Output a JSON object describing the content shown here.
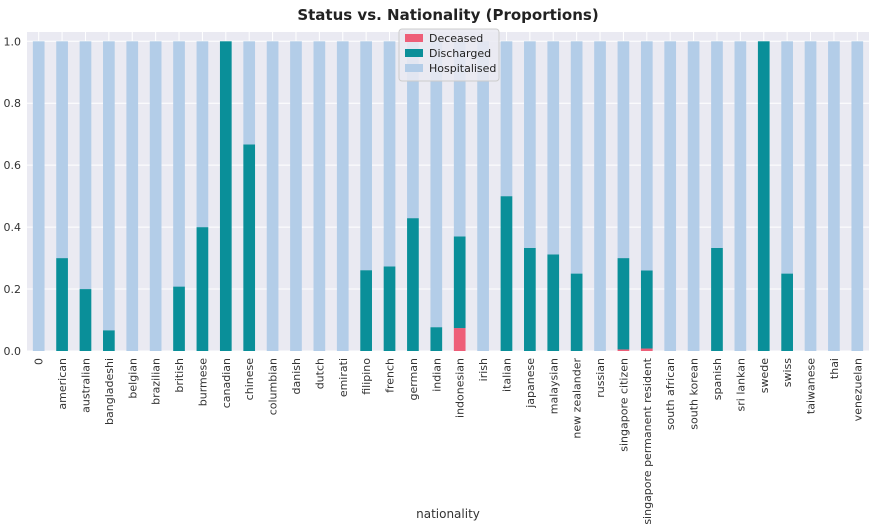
{
  "chart_data": {
    "type": "bar",
    "stacked": true,
    "title": "Status vs. Nationality (Proportions)",
    "xlabel": "nationality",
    "ylabel": "",
    "ylim": [
      0,
      1.03
    ],
    "yticks": [
      0.0,
      0.2,
      0.4,
      0.6,
      0.8,
      1.0
    ],
    "ytick_labels": [
      "0.0",
      "0.2",
      "0.4",
      "0.6",
      "0.8",
      "1.0"
    ],
    "grid": true,
    "legend_position": "top-center",
    "categories": [
      "0",
      "american",
      "australian",
      "bangladeshi",
      "belgian",
      "brazilian",
      "british",
      "burmese",
      "canadian",
      "chinese",
      "columbian",
      "danish",
      "dutch",
      "emirati",
      "filipino",
      "french",
      "german",
      "indian",
      "indonesian",
      "irish",
      "italian",
      "japanese",
      "malaysian",
      "new zealander",
      "russian",
      "singapore citizen",
      "singapore permanent resident",
      "south african",
      "south korean",
      "spanish",
      "sri lankan",
      "swede",
      "swiss",
      "taiwanese",
      "thai",
      "venezuelan"
    ],
    "series": [
      {
        "name": "Deceased",
        "color": "#ee5e78",
        "values": [
          0,
          0,
          0,
          0,
          0,
          0,
          0,
          0,
          0,
          0,
          0,
          0,
          0,
          0,
          0,
          0,
          0,
          0,
          0.074,
          0,
          0,
          0,
          0,
          0,
          0,
          0.005,
          0.008,
          0,
          0,
          0,
          0,
          0,
          0,
          0,
          0,
          0
        ]
      },
      {
        "name": "Discharged",
        "color": "#0a8f99",
        "values": [
          0,
          0.3,
          0.2,
          0.067,
          0,
          0,
          0.208,
          0.4,
          1.0,
          0.667,
          0,
          0,
          0,
          0,
          0.261,
          0.273,
          0.429,
          0.077,
          0.296,
          0,
          0.5,
          0.333,
          0.312,
          0.25,
          0,
          0.295,
          0.252,
          0,
          0,
          0.333,
          0,
          1.0,
          0.25,
          0,
          0,
          0
        ]
      },
      {
        "name": "Hospitalised",
        "color": "#b3cde8",
        "values": [
          1.0,
          0.7,
          0.8,
          0.933,
          1.0,
          1.0,
          0.792,
          0.6,
          0,
          0.333,
          1.0,
          1.0,
          1.0,
          1.0,
          0.739,
          0.727,
          0.571,
          0.923,
          0.63,
          1.0,
          0.5,
          0.667,
          0.688,
          0.75,
          1.0,
          0.7,
          0.74,
          1.0,
          1.0,
          0.667,
          1.0,
          0,
          0.75,
          1.0,
          1.0,
          1.0
        ]
      }
    ]
  }
}
